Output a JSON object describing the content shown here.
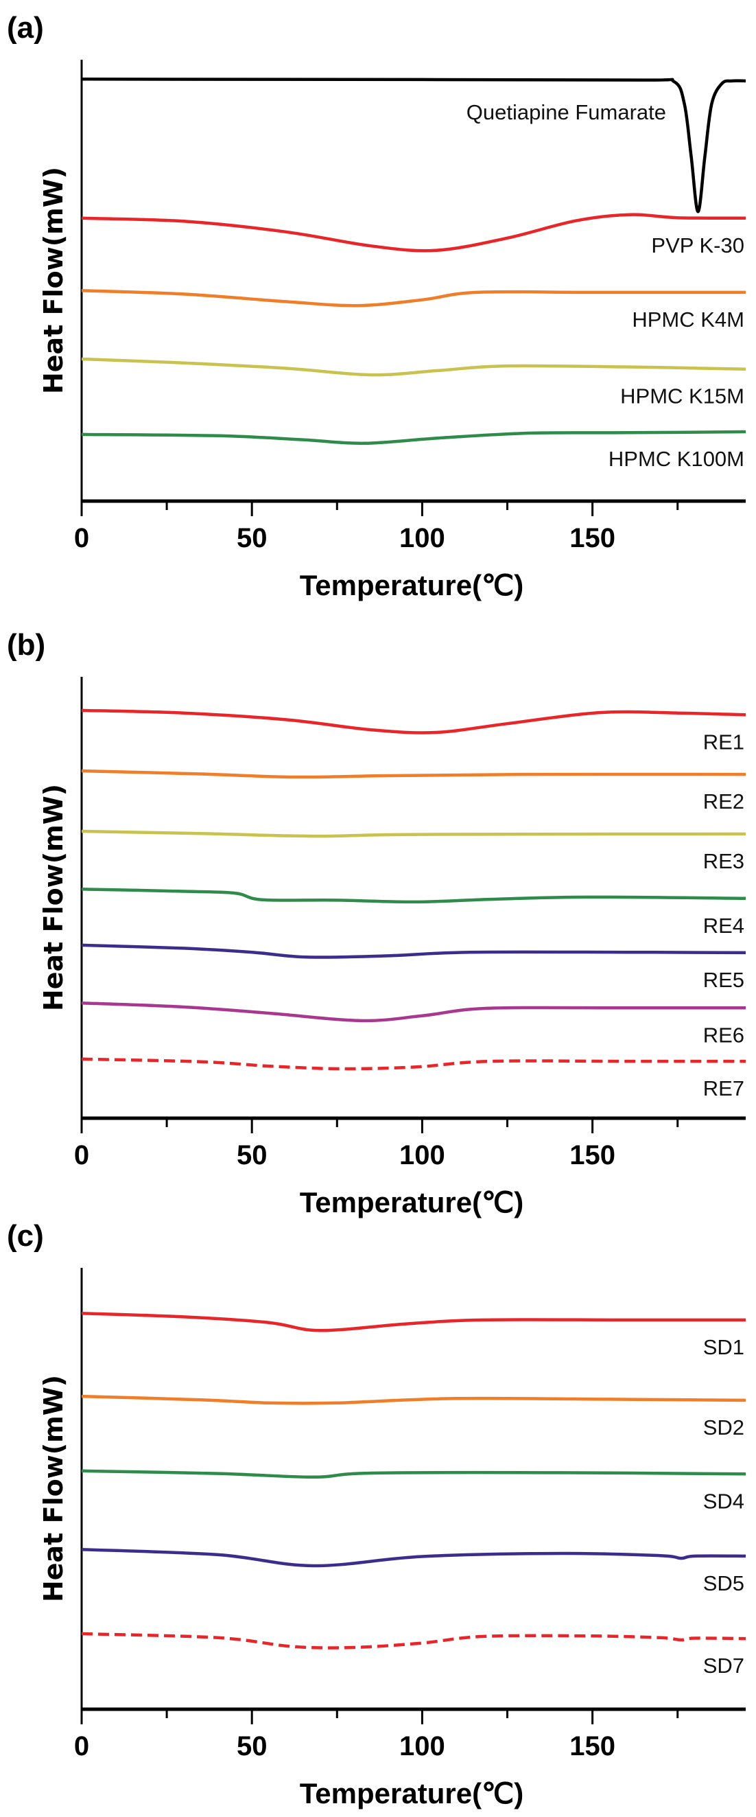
{
  "chart_data": [
    {
      "type": "line",
      "panel_label": "(a)",
      "xlabel": "Temperature(℃)",
      "ylabel": "Heat Flow(mW)",
      "xlim": [
        0,
        195
      ],
      "ylim": [
        0,
        100
      ],
      "y_units": "a.u. (stacked, no y ticks)",
      "xticks": [
        0,
        50,
        100,
        150
      ],
      "xtick_labels": [
        "0",
        "50",
        "100",
        "150"
      ],
      "minor_xticks": [
        25,
        75,
        125,
        175
      ],
      "grid": false,
      "series": [
        {
          "name": "Quetiapine Fumarate",
          "color": "#000000",
          "dashed": false,
          "points": [
            [
              0,
              95.6
            ],
            [
              100,
              95.5
            ],
            [
              165,
              95.4
            ],
            [
              174,
              95.0
            ],
            [
              177,
              90
            ],
            [
              179,
              78
            ],
            [
              181,
              65.6
            ],
            [
              183,
              78
            ],
            [
              185,
              90
            ],
            [
              188,
              94.6
            ],
            [
              191,
              95.2
            ],
            [
              195,
              95.2
            ]
          ]
        },
        {
          "name": "PVP K-30",
          "color": "#e8262a",
          "dashed": false,
          "points": [
            [
              0,
              64.1
            ],
            [
              30,
              63.4
            ],
            [
              60,
              61.0
            ],
            [
              85,
              57.8
            ],
            [
              104,
              56.8
            ],
            [
              125,
              59.6
            ],
            [
              145,
              63.5
            ],
            [
              161,
              64.9
            ],
            [
              175,
              64.2
            ],
            [
              195,
              64.1
            ]
          ]
        },
        {
          "name": "HPMC K4M",
          "color": "#f07d27",
          "dashed": false,
          "points": [
            [
              0,
              47.7
            ],
            [
              30,
              46.9
            ],
            [
              60,
              45.2
            ],
            [
              81,
              44.3
            ],
            [
              100,
              45.6
            ],
            [
              116,
              47.3
            ],
            [
              150,
              47.3
            ],
            [
              195,
              47.3
            ]
          ]
        },
        {
          "name": "HPMC K15M",
          "color": "#c9c24e",
          "dashed": false,
          "points": [
            [
              0,
              32.2
            ],
            [
              30,
              31.3
            ],
            [
              60,
              30.1
            ],
            [
              85,
              28.6
            ],
            [
              105,
              29.6
            ],
            [
              124,
              30.6
            ],
            [
              160,
              30.4
            ],
            [
              195,
              29.9
            ]
          ]
        },
        {
          "name": "HPMC K100M",
          "color": "#2e8b4a",
          "dashed": false,
          "points": [
            [
              0,
              15.1
            ],
            [
              40,
              14.8
            ],
            [
              65,
              13.9
            ],
            [
              83,
              13.1
            ],
            [
              105,
              14.3
            ],
            [
              131,
              15.4
            ],
            [
              160,
              15.5
            ],
            [
              195,
              15.7
            ]
          ]
        }
      ]
    },
    {
      "type": "line",
      "panel_label": "(b)",
      "xlabel": "Temperature(℃)",
      "ylabel": "Heat Flow(mW)",
      "xlim": [
        0,
        195
      ],
      "ylim": [
        0,
        100
      ],
      "y_units": "a.u. (stacked, no y ticks)",
      "xticks": [
        0,
        50,
        100,
        150
      ],
      "xtick_labels": [
        "0",
        "50",
        "100",
        "150"
      ],
      "minor_xticks": [
        25,
        75,
        125,
        175
      ],
      "grid": false,
      "series": [
        {
          "name": "RE1",
          "color": "#e8262a",
          "dashed": false,
          "points": [
            [
              0,
              92.4
            ],
            [
              30,
              91.8
            ],
            [
              60,
              90.3
            ],
            [
              85,
              88.0
            ],
            [
              104,
              87.4
            ],
            [
              125,
              89.4
            ],
            [
              152,
              91.9
            ],
            [
              175,
              91.8
            ],
            [
              195,
              91.4
            ]
          ]
        },
        {
          "name": "RE2",
          "color": "#f07d27",
          "dashed": false,
          "points": [
            [
              0,
              78.7
            ],
            [
              35,
              78.0
            ],
            [
              62,
              77.3
            ],
            [
              90,
              77.6
            ],
            [
              130,
              77.9
            ],
            [
              195,
              77.9
            ]
          ]
        },
        {
          "name": "RE3",
          "color": "#c9c24e",
          "dashed": false,
          "points": [
            [
              0,
              65.0
            ],
            [
              35,
              64.5
            ],
            [
              68,
              63.9
            ],
            [
              100,
              64.3
            ],
            [
              195,
              64.4
            ]
          ]
        },
        {
          "name": "RE4",
          "color": "#2e8b4a",
          "dashed": false,
          "points": [
            [
              0,
              51.9
            ],
            [
              30,
              51.4
            ],
            [
              45,
              51.0
            ],
            [
              53,
              49.5
            ],
            [
              75,
              49.4
            ],
            [
              98,
              49.0
            ],
            [
              120,
              49.6
            ],
            [
              149,
              50.1
            ],
            [
              195,
              49.8
            ]
          ]
        },
        {
          "name": "RE5",
          "color": "#3b2d8c",
          "dashed": false,
          "points": [
            [
              0,
              39.2
            ],
            [
              30,
              38.5
            ],
            [
              50,
              37.6
            ],
            [
              66,
              36.5
            ],
            [
              90,
              36.8
            ],
            [
              114,
              37.6
            ],
            [
              160,
              37.6
            ],
            [
              195,
              37.5
            ]
          ]
        },
        {
          "name": "RE6",
          "color": "#a8378f",
          "dashed": false,
          "points": [
            [
              0,
              26.1
            ],
            [
              30,
              25.2
            ],
            [
              55,
              23.8
            ],
            [
              82,
              22.1
            ],
            [
              100,
              23.2
            ],
            [
              119,
              24.9
            ],
            [
              160,
              25.0
            ],
            [
              195,
              25.0
            ]
          ]
        },
        {
          "name": "RE7",
          "color": "#e8262a",
          "dashed": true,
          "points": [
            [
              0,
              13.4
            ],
            [
              35,
              12.8
            ],
            [
              55,
              11.8
            ],
            [
              76,
              11.2
            ],
            [
              98,
              11.6
            ],
            [
              120,
              12.9
            ],
            [
              160,
              12.9
            ],
            [
              195,
              12.9
            ]
          ]
        }
      ]
    },
    {
      "type": "line",
      "panel_label": "(c)",
      "xlabel": "Temperature(℃)",
      "ylabel": "Heat Flow(mW)",
      "xlim": [
        0,
        195
      ],
      "ylim": [
        0,
        100
      ],
      "y_units": "a.u. (stacked, no y ticks)",
      "xticks": [
        0,
        50,
        100,
        150
      ],
      "xtick_labels": [
        "0",
        "50",
        "100",
        "150"
      ],
      "minor_xticks": [
        25,
        75,
        125,
        175
      ],
      "grid": false,
      "series": [
        {
          "name": "SD1",
          "color": "#e8262a",
          "dashed": false,
          "points": [
            [
              0,
              89.7
            ],
            [
              30,
              88.9
            ],
            [
              55,
              87.6
            ],
            [
              70,
              85.8
            ],
            [
              95,
              87.3
            ],
            [
              118,
              88.2
            ],
            [
              160,
              88.2
            ],
            [
              195,
              88.2
            ]
          ]
        },
        {
          "name": "SD2",
          "color": "#f07d27",
          "dashed": false,
          "points": [
            [
              0,
              70.9
            ],
            [
              35,
              70.1
            ],
            [
              55,
              69.4
            ],
            [
              75,
              69.4
            ],
            [
              110,
              70.4
            ],
            [
              160,
              70.2
            ],
            [
              195,
              70.0
            ]
          ]
        },
        {
          "name": "SD4",
          "color": "#2e8b4a",
          "dashed": false,
          "points": [
            [
              0,
              54.0
            ],
            [
              40,
              53.4
            ],
            [
              68,
              52.6
            ],
            [
              85,
              53.5
            ],
            [
              140,
              53.6
            ],
            [
              195,
              53.3
            ]
          ]
        },
        {
          "name": "SD5",
          "color": "#3b2d8c",
          "dashed": false,
          "points": [
            [
              0,
              36.2
            ],
            [
              40,
              35.0
            ],
            [
              68,
              32.5
            ],
            [
              100,
              34.6
            ],
            [
              141,
              35.3
            ],
            [
              170,
              34.8
            ],
            [
              176,
              34.2
            ],
            [
              180,
              34.7
            ],
            [
              195,
              34.7
            ]
          ]
        },
        {
          "name": "SD7",
          "color": "#e8262a",
          "dashed": true,
          "points": [
            [
              0,
              17.1
            ],
            [
              40,
              16.2
            ],
            [
              62,
              14.2
            ],
            [
              80,
              14.0
            ],
            [
              100,
              15.0
            ],
            [
              118,
              16.5
            ],
            [
              150,
              16.6
            ],
            [
              170,
              16.2
            ],
            [
              176,
              15.7
            ],
            [
              180,
              16.1
            ],
            [
              195,
              16.0
            ]
          ]
        }
      ]
    }
  ]
}
